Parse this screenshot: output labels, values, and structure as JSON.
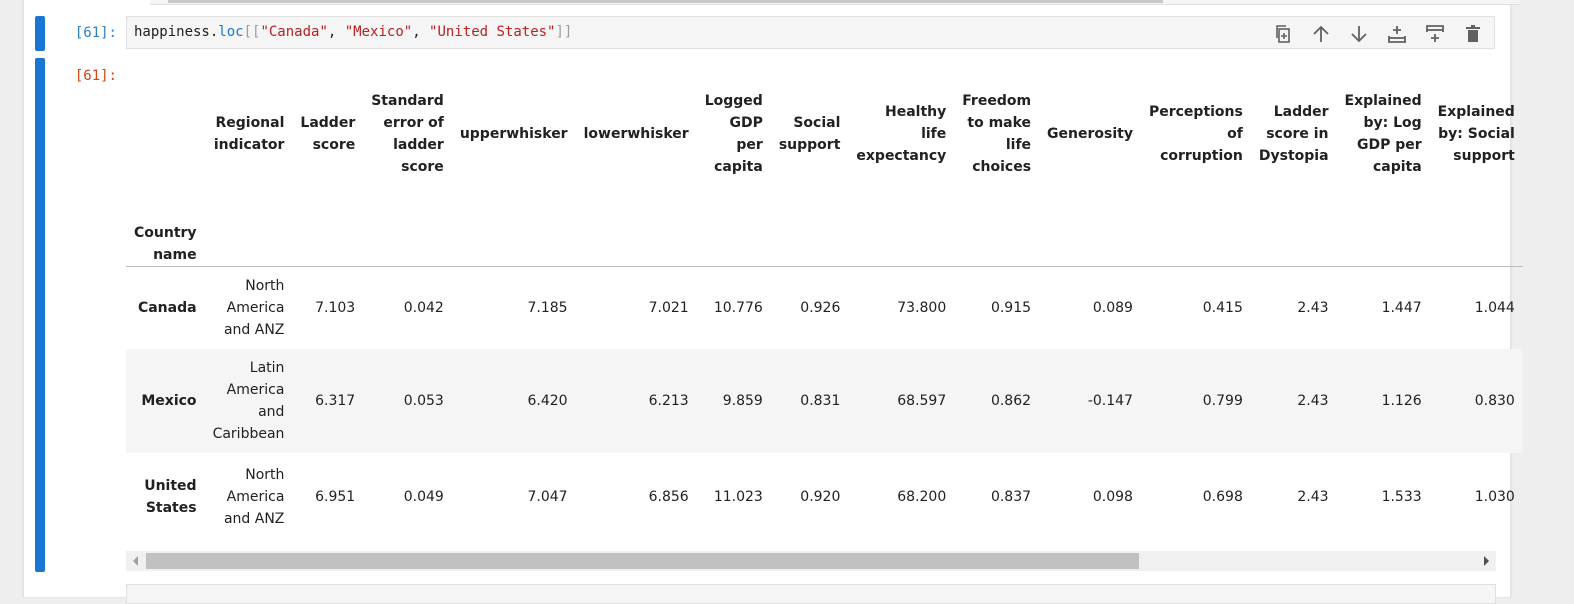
{
  "cell": {
    "input_prompt": "[61]:",
    "output_prompt": "[61]:",
    "code": {
      "var": "happiness.",
      "attr": "loc",
      "open": "[[",
      "s1": "\"Canada\"",
      "sep1": ", ",
      "s2": "\"Mexico\"",
      "sep2": ", ",
      "s3": "\"United States\"",
      "close": "]]"
    }
  },
  "toolbar": {
    "icons": [
      "duplicate-icon",
      "move-up-icon",
      "move-down-icon",
      "insert-above-icon",
      "insert-below-icon",
      "delete-icon"
    ]
  },
  "table": {
    "index_name": "Country name",
    "columns": [
      "Regional indicator",
      "Ladder score",
      "Standard error of ladder score",
      "upperwhisker",
      "lowerwhisker",
      "Logged GDP per capita",
      "Social support",
      "Healthy life expectancy",
      "Freedom to make life choices",
      "Generosity",
      "Perceptions of corruption",
      "Ladder score in Dystopia",
      "Explained by: Log GDP per capita",
      "Explained by: Social support"
    ],
    "rows": [
      {
        "index": "Canada",
        "values": [
          "North America and ANZ",
          "7.103",
          "0.042",
          "7.185",
          "7.021",
          "10.776",
          "0.926",
          "73.800",
          "0.915",
          "0.089",
          "0.415",
          "2.43",
          "1.447",
          "1.044"
        ]
      },
      {
        "index": "Mexico",
        "values": [
          "Latin America and Caribbean",
          "6.317",
          "0.053",
          "6.420",
          "6.213",
          "9.859",
          "0.831",
          "68.597",
          "0.862",
          "-0.147",
          "0.799",
          "2.43",
          "1.126",
          "0.830"
        ]
      },
      {
        "index": "United States",
        "values": [
          "North America and ANZ",
          "6.951",
          "0.049",
          "7.047",
          "6.856",
          "11.023",
          "0.920",
          "68.200",
          "0.837",
          "0.098",
          "0.698",
          "2.43",
          "1.533",
          "1.030"
        ]
      }
    ]
  },
  "colors": {
    "collapser": "#1976d2",
    "input_prompt": "#307fc1",
    "output_prompt": "#d84315",
    "string": "#ba2121"
  }
}
